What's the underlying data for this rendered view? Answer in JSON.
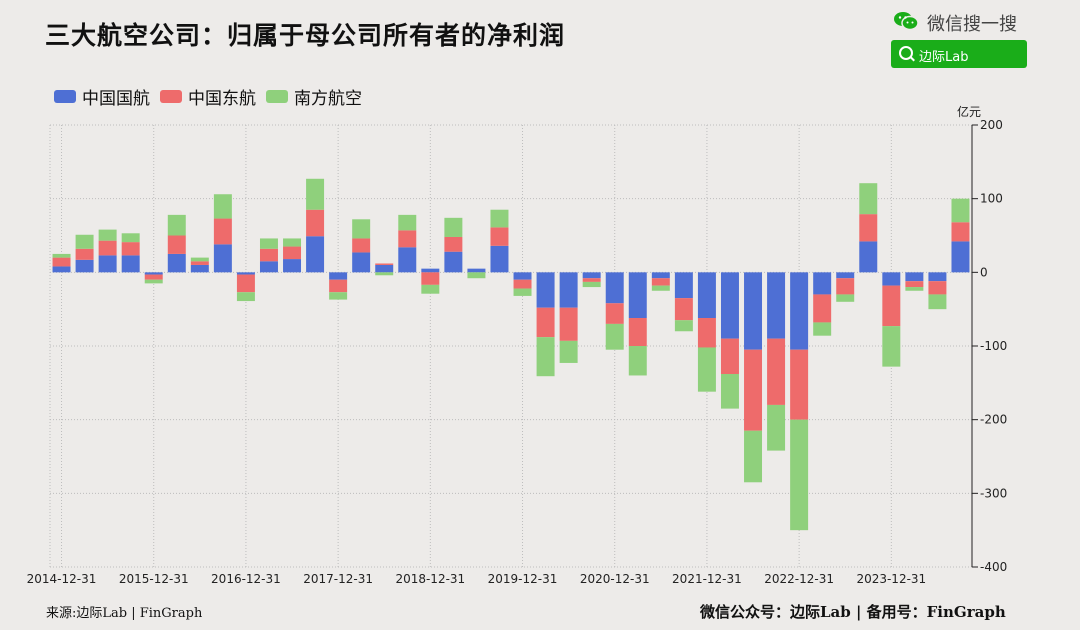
{
  "title": "三大航空公司：归属于母公司所有者的净利润",
  "wechat": {
    "label": "微信搜一搜",
    "search_text": "边际Lab",
    "logo_icon": "wechat-icon",
    "search_icon": "search-icon",
    "search_color": "#1aad19"
  },
  "footer": {
    "left": "来源:边际Lab | FinGraph",
    "right": "微信公众号：边际Lab  |  备用号：FinGraph"
  },
  "chart_data": {
    "type": "bar",
    "stacked": true,
    "title": "三大航空公司：归属于母公司所有者的净利润",
    "ylabel": "亿元",
    "ylim": [
      -400,
      200
    ],
    "yticks": [
      200,
      100,
      0,
      -100,
      -200,
      -300,
      -400
    ],
    "legend_position": "top-left",
    "grid": true,
    "x_labels": [
      "2014-12-31",
      "2015-12-31",
      "2016-12-31",
      "2017-12-31",
      "2018-12-31",
      "2019-12-31",
      "2020-12-31",
      "2021-12-31",
      "2022-12-31",
      "2023-12-31"
    ],
    "categories": [
      "2014-12-31",
      "2015-03-31",
      "2015-06-30",
      "2015-09-30",
      "2015-12-31",
      "2016-03-31",
      "2016-06-30",
      "2016-09-30",
      "2016-12-31",
      "2017-03-31",
      "2017-06-30",
      "2017-09-30",
      "2017-12-31",
      "2018-03-31",
      "2018-06-30",
      "2018-09-30",
      "2018-12-31",
      "2019-03-31",
      "2019-06-30",
      "2019-09-30",
      "2019-12-31",
      "2020-03-31",
      "2020-06-30",
      "2020-09-30",
      "2020-12-31",
      "2021-03-31",
      "2021-06-30",
      "2021-09-30",
      "2021-12-31",
      "2022-03-31",
      "2022-06-30",
      "2022-09-30",
      "2022-12-31",
      "2023-03-31",
      "2023-06-30",
      "2023-09-30",
      "2023-12-31",
      "2024-03-31",
      "2024-06-30",
      "2024-09-30"
    ],
    "series": [
      {
        "name": "中国国航",
        "color": "#4e6fd4",
        "values": [
          8,
          17,
          23,
          23,
          -3,
          25,
          10,
          38,
          -3,
          15,
          18,
          49,
          -10,
          27,
          10,
          34,
          5,
          28,
          5,
          36,
          -10,
          -48,
          -48,
          -8,
          -42,
          -62,
          -8,
          -35,
          -62,
          -90,
          -105,
          -90,
          -105,
          -30,
          -8,
          42,
          -18,
          -12,
          -12,
          42
        ]
      },
      {
        "name": "中国东航",
        "color": "#ee6b6b",
        "values": [
          12,
          15,
          20,
          18,
          -7,
          25,
          5,
          35,
          -24,
          17,
          17,
          36,
          -17,
          19,
          2,
          23,
          -17,
          20,
          0,
          25,
          -12,
          -40,
          -45,
          -5,
          -28,
          -38,
          -10,
          -30,
          -40,
          -48,
          -110,
          -90,
          -95,
          -38,
          -22,
          37,
          -55,
          -8,
          -18,
          26
        ]
      },
      {
        "name": "南方航空",
        "color": "#8fd07c",
        "values": [
          5,
          19,
          15,
          12,
          -5,
          28,
          5,
          33,
          -12,
          14,
          11,
          42,
          -10,
          26,
          -4,
          21,
          -12,
          26,
          -8,
          24,
          -10,
          -53,
          -30,
          -7,
          -35,
          -40,
          -7,
          -15,
          -60,
          -47,
          -70,
          -62,
          -150,
          -18,
          -10,
          42,
          -55,
          -5,
          -20,
          32
        ]
      }
    ]
  }
}
